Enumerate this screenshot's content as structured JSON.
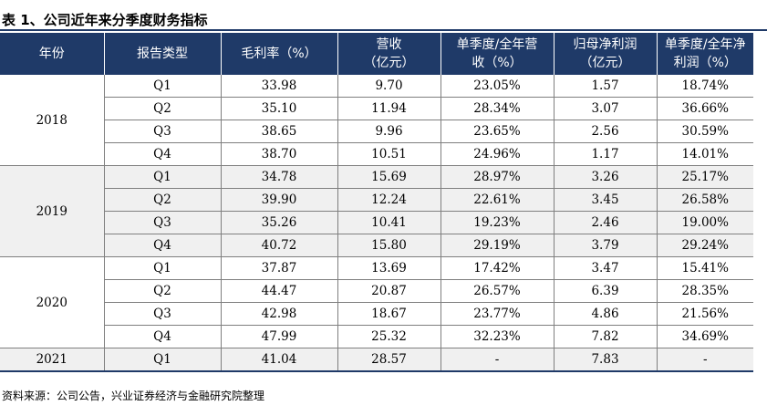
{
  "title": "表 1、公司近年来分季度财务指标",
  "headers": [
    "年份",
    "报告类型",
    "毛利率（%）",
    "营收\n（亿元）",
    "单季度/全年营\n收（%）",
    "归母净利润\n（亿元）",
    "单季度/全年净\n利润（%）"
  ],
  "groups": [
    {
      "year": "2018",
      "rows": [
        [
          "Q1",
          "33.98",
          "9.70",
          "23.05%",
          "1.57",
          "18.74%"
        ],
        [
          "Q2",
          "35.10",
          "11.94",
          "28.34%",
          "3.07",
          "36.66%"
        ],
        [
          "Q3",
          "38.65",
          "9.96",
          "23.65%",
          "2.56",
          "30.59%"
        ],
        [
          "Q4",
          "38.70",
          "10.51",
          "24.96%",
          "1.17",
          "14.01%"
        ]
      ]
    },
    {
      "year": "2019",
      "rows": [
        [
          "Q1",
          "34.78",
          "15.69",
          "28.97%",
          "3.26",
          "25.17%"
        ],
        [
          "Q2",
          "39.90",
          "12.24",
          "22.61%",
          "3.45",
          "26.58%"
        ],
        [
          "Q3",
          "35.26",
          "10.41",
          "19.23%",
          "2.46",
          "19.00%"
        ],
        [
          "Q4",
          "40.72",
          "15.80",
          "29.19%",
          "3.79",
          "29.24%"
        ]
      ]
    },
    {
      "year": "2020",
      "rows": [
        [
          "Q1",
          "37.87",
          "13.69",
          "17.42%",
          "3.47",
          "15.41%"
        ],
        [
          "Q2",
          "44.47",
          "20.87",
          "26.57%",
          "6.39",
          "28.35%"
        ],
        [
          "Q3",
          "42.98",
          "18.67",
          "23.77%",
          "4.86",
          "21.56%"
        ],
        [
          "Q4",
          "47.99",
          "25.32",
          "32.23%",
          "7.82",
          "34.69%"
        ]
      ]
    },
    {
      "year": "2021",
      "rows": [
        [
          "Q1",
          "41.04",
          "28.57",
          "-",
          "7.83",
          "-"
        ]
      ]
    }
  ],
  "source": "资料来源：公司公告，兴业证券经济与金融研究院整理",
  "colors": {
    "header_bg": "#1f3a68",
    "header_text": "#ffffff",
    "alt_row_bg": "#f0f0f0"
  }
}
